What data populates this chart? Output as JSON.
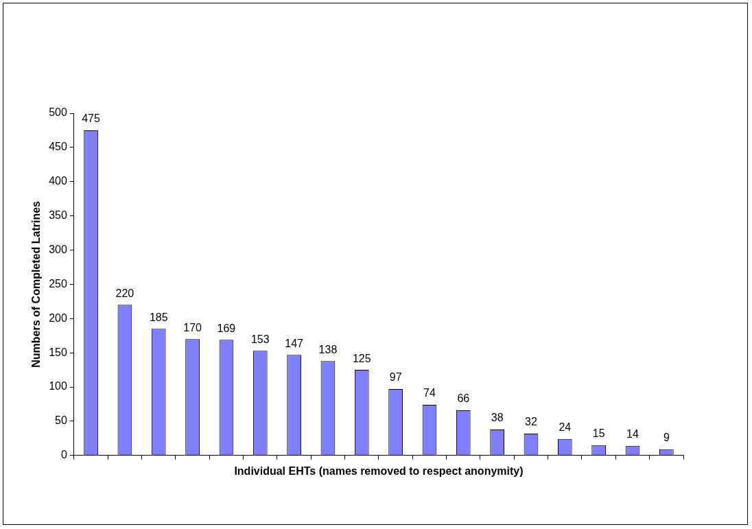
{
  "chart_data": {
    "type": "bar",
    "xlabel": "Individual EHTs (names removed to respect anonymity)",
    "ylabel": "Numbers of Completed Latrines",
    "categories": [
      null,
      null,
      null,
      null,
      null,
      null,
      null,
      null,
      null,
      null,
      null,
      null,
      null,
      null,
      null,
      null,
      null,
      null
    ],
    "values": [
      475,
      220,
      185,
      170,
      169,
      153,
      147,
      138,
      125,
      97,
      74,
      66,
      38,
      32,
      24,
      15,
      14,
      9
    ],
    "color": "#8080ff",
    "ylim": [
      0,
      500
    ],
    "yticks": [
      0,
      50,
      100,
      150,
      200,
      250,
      300,
      350,
      400,
      450,
      500
    ],
    "grid": false,
    "legend": false,
    "tick_labels": "y",
    "data_labels": true
  }
}
